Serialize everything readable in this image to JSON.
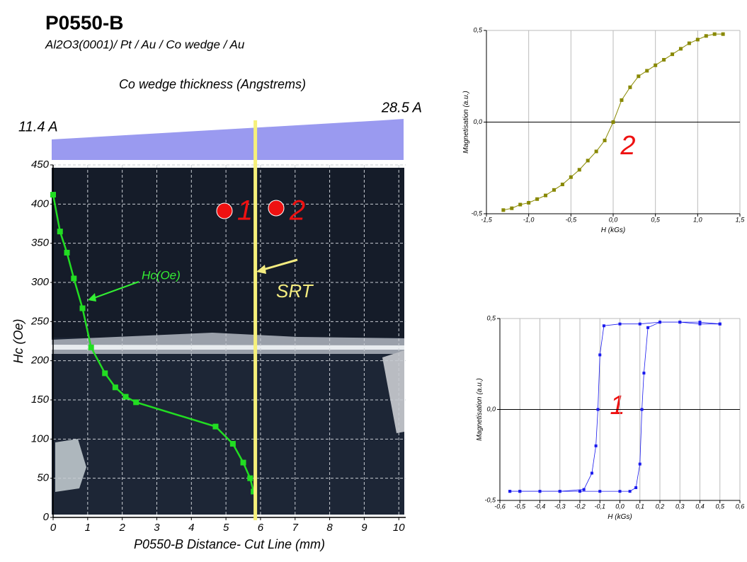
{
  "chart_data": [
    {
      "type": "line",
      "title": "P0550-B",
      "subtitle": "Al2O3(0001)/ Pt / Au / Co wedge / Au",
      "top_axis_label": "Co wedge thickness (Angstrems)",
      "wedge_labels": [
        "11.4 A",
        "28.5 A"
      ],
      "xlabel": "P0550-B Distance- Cut Line (mm)",
      "ylabel": "Hc (Oe)",
      "srt_label": "SRT",
      "srt_x": 5.85,
      "point_labels": [
        "1",
        "2"
      ],
      "xlim": [
        0,
        10.2
      ],
      "xticks": [
        0,
        1,
        2,
        3,
        4,
        5,
        6,
        7,
        8,
        9,
        10
      ],
      "ylim": [
        0,
        450
      ],
      "yticks": [
        0,
        50,
        100,
        150,
        200,
        250,
        300,
        350,
        400,
        450
      ],
      "grid": true,
      "series": [
        {
          "name": "Hc(Oe)",
          "color": "#22dd22",
          "x": [
            0,
            0.2,
            0.4,
            0.6,
            0.85,
            1.1,
            1.5,
            1.8,
            2.1,
            2.4,
            4.7,
            5.2,
            5.5,
            5.7,
            5.8
          ],
          "values": [
            412,
            365,
            338,
            305,
            267,
            217,
            184,
            166,
            154,
            147,
            116,
            94,
            70,
            50,
            33
          ]
        }
      ]
    },
    {
      "type": "line",
      "annotation": "2",
      "xlabel": "H (kGs)",
      "ylabel": "Magnetisation (a.u.)",
      "xlim": [
        -1.5,
        1.5
      ],
      "xticks": [
        {
          "value": -1.5,
          "label": "-1,5"
        },
        {
          "value": -1.0,
          "label": "-1,0"
        },
        {
          "value": -0.5,
          "label": "-0,5"
        },
        {
          "value": 0,
          "label": "0,0"
        },
        {
          "value": 0.5,
          "label": "0,5"
        },
        {
          "value": 1.0,
          "label": "1,0"
        },
        {
          "value": 1.5,
          "label": "1,5"
        }
      ],
      "ylim": [
        -0.5,
        0.5
      ],
      "yticks": [
        {
          "value": -0.5,
          "label": "-0,5"
        },
        {
          "value": 0,
          "label": "0,0"
        },
        {
          "value": 0.5,
          "label": "0,5"
        }
      ],
      "grid": true,
      "series": [
        {
          "color": "#888800",
          "x": [
            -1.3,
            -1.2,
            -1.1,
            -1.0,
            -0.9,
            -0.8,
            -0.7,
            -0.6,
            -0.5,
            -0.4,
            -0.3,
            -0.2,
            -0.1,
            0,
            0.1,
            0.2,
            0.3,
            0.4,
            0.5,
            0.6,
            0.7,
            0.8,
            0.9,
            1.0,
            1.1,
            1.2,
            1.3
          ],
          "values": [
            -0.48,
            -0.47,
            -0.45,
            -0.44,
            -0.42,
            -0.4,
            -0.37,
            -0.34,
            -0.3,
            -0.26,
            -0.21,
            -0.16,
            -0.1,
            0,
            0.12,
            0.19,
            0.25,
            0.28,
            0.31,
            0.34,
            0.37,
            0.4,
            0.43,
            0.45,
            0.47,
            0.48,
            0.48
          ]
        }
      ]
    },
    {
      "type": "line",
      "annotation": "1",
      "xlabel": "H (kGs)",
      "ylabel": "Magnetisation (a.u.)",
      "xlim": [
        -0.6,
        0.6
      ],
      "xticks": [
        {
          "value": -0.6,
          "label": "-0,6"
        },
        {
          "value": -0.5,
          "label": "-0,5"
        },
        {
          "value": -0.4,
          "label": "-0,4"
        },
        {
          "value": -0.3,
          "label": "-0,3"
        },
        {
          "value": -0.2,
          "label": "-0,2"
        },
        {
          "value": -0.1,
          "label": "-0,1"
        },
        {
          "value": 0,
          "label": "0,0"
        },
        {
          "value": 0.1,
          "label": "0,1"
        },
        {
          "value": 0.2,
          "label": "0,2"
        },
        {
          "value": 0.3,
          "label": "0,3"
        },
        {
          "value": 0.4,
          "label": "0,4"
        },
        {
          "value": 0.5,
          "label": "0,5"
        },
        {
          "value": 0.6,
          "label": "0,6"
        }
      ],
      "ylim": [
        -0.5,
        0.5
      ],
      "yticks": [
        {
          "value": -0.5,
          "label": "-0,5"
        },
        {
          "value": 0,
          "label": "0,0"
        },
        {
          "value": 0.5,
          "label": "0,5"
        }
      ],
      "grid": true,
      "series": [
        {
          "color": "#1a1aee",
          "x": [
            -0.55,
            -0.5,
            -0.4,
            -0.3,
            -0.2,
            -0.1,
            0,
            0.05,
            0.08,
            0.1,
            0.11,
            0.12,
            0.14,
            0.2,
            0.3,
            0.4,
            0.5
          ],
          "values": [
            -0.45,
            -0.45,
            -0.45,
            -0.45,
            -0.45,
            -0.45,
            -0.45,
            -0.45,
            -0.43,
            -0.3,
            0,
            0.2,
            0.45,
            0.48,
            0.48,
            0.47,
            0.47
          ]
        },
        {
          "color": "#1a1aee",
          "x": [
            0.5,
            0.4,
            0.3,
            0.2,
            0.1,
            0,
            -0.08,
            -0.1,
            -0.11,
            -0.12,
            -0.14,
            -0.18,
            -0.3,
            -0.4,
            -0.5,
            -0.55
          ],
          "values": [
            0.47,
            0.48,
            0.48,
            0.48,
            0.47,
            0.47,
            0.46,
            0.3,
            0,
            -0.2,
            -0.35,
            -0.44,
            -0.45,
            -0.45,
            -0.45,
            -0.45
          ]
        }
      ]
    }
  ]
}
